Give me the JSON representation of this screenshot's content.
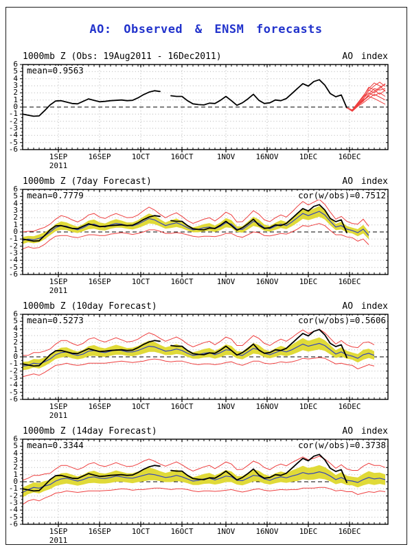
{
  "page": {
    "title": "AO: Observed & ENSM forecasts"
  },
  "colors": {
    "title_blue": "#2233cc",
    "observed_black": "#000000",
    "ensemble_red": "#ee3e3e",
    "mean_blue": "#3344bb",
    "spread_yellow": "#e0da38",
    "grid_gray": "#b2b2b2"
  },
  "panels": [
    {
      "header_left": "1000mb Z (Obs: 19Aug2011 - 16Dec2011)",
      "header_right": "AO index",
      "mean_label": "mean=0.9563"
    },
    {
      "header_left": "1000mb Z (7day Forecast)",
      "header_right": "AO index",
      "mean_label": "mean=0.7779",
      "cor_label": "cor(w/obs)=0.7512"
    },
    {
      "header_left": "1000mb Z (10day Forecast)",
      "header_right": "AO index",
      "mean_label": "mean=0.5273",
      "cor_label": "cor(w/obs)=0.5606"
    },
    {
      "header_left": "1000mb Z (14day Forecast)",
      "header_right": "AO index",
      "mean_label": "mean=0.3344",
      "cor_label": "cor(w/obs)=0.3738"
    }
  ],
  "chart_data": {
    "type": "line",
    "ylim": [
      -6,
      6
    ],
    "x_max": 133,
    "x_axis_note": "x in days since 19Aug2011; axis ends ~30Dec2011",
    "y_ticks": [
      6,
      5,
      4,
      3,
      2,
      1,
      0,
      -1,
      -2,
      -3,
      -4,
      -5,
      -6
    ],
    "x_ticks": [
      {
        "label": "1SEP",
        "sub": "2011",
        "t": 13
      },
      {
        "label": "16SEP",
        "t": 28
      },
      {
        "label": "1OCT",
        "t": 43
      },
      {
        "label": "16OCT",
        "t": 58
      },
      {
        "label": "1NOV",
        "t": 74
      },
      {
        "label": "16NOV",
        "t": 89
      },
      {
        "label": "1DEC",
        "t": 104
      },
      {
        "label": "16DEC",
        "t": 119
      }
    ],
    "observed": {
      "name": "AO index observed (1000mb Z)",
      "mean": 0.9563,
      "t0": 0,
      "dt": 2,
      "y": [
        -1.0,
        -1.15,
        -1.3,
        -1.25,
        -0.5,
        0.3,
        0.85,
        0.9,
        0.7,
        0.5,
        0.45,
        0.8,
        1.15,
        0.95,
        0.75,
        0.8,
        0.9,
        0.95,
        1.0,
        0.9,
        0.95,
        1.3,
        1.75,
        2.1,
        2.3,
        2.2,
        null,
        1.6,
        1.5,
        1.5,
        0.9,
        0.45,
        0.35,
        0.3,
        0.55,
        0.5,
        0.95,
        1.5,
        0.9,
        0.25,
        0.6,
        1.15,
        1.8,
        0.95,
        0.5,
        0.6,
        1.0,
        0.9,
        1.2,
        1.9,
        2.6,
        3.3,
        2.95,
        3.6,
        3.85,
        3.1,
        1.9,
        1.45,
        1.7,
        -0.1
      ]
    },
    "ensemble_members": {
      "name": "ENSM member forecasts beyond 16Dec",
      "t0": 118,
      "dt": 2,
      "members": [
        [
          -0.1,
          -0.5,
          0.3,
          1.0,
          1.6,
          2.2,
          2.8,
          3.2
        ],
        [
          -0.1,
          -0.45,
          0.5,
          1.4,
          2.3,
          3.0,
          3.5,
          2.9
        ],
        [
          -0.1,
          -0.55,
          0.2,
          0.8,
          1.8,
          2.6,
          2.4,
          2.6
        ],
        [
          -0.1,
          -0.4,
          0.6,
          1.6,
          2.6,
          3.4,
          3.0,
          2.2
        ],
        [
          -0.1,
          -0.5,
          0.4,
          1.2,
          2.0,
          1.6,
          2.0,
          1.5
        ],
        [
          -0.1,
          -0.6,
          0.1,
          0.6,
          1.2,
          1.8,
          1.4,
          1.0
        ],
        [
          -0.1,
          -0.5,
          0.3,
          1.1,
          2.4,
          2.0,
          2.6,
          3.3
        ],
        [
          -0.1,
          -0.45,
          0.2,
          0.9,
          1.5,
          1.2,
          0.8,
          0.4
        ],
        [
          -0.1,
          -0.55,
          0.5,
          1.5,
          2.8,
          2.4,
          1.8,
          2.4
        ]
      ]
    },
    "forecast_panels": [
      {
        "name": "7day Forecast",
        "mean_stat": 0.7779,
        "cor_w_obs": 0.7512,
        "t0": 0,
        "dt": 2,
        "mean": [
          -1.2,
          -1.0,
          -1.1,
          -0.9,
          -0.55,
          0.0,
          0.6,
          0.9,
          0.8,
          0.5,
          0.3,
          0.6,
          1.0,
          1.1,
          0.8,
          0.7,
          1.0,
          1.2,
          1.1,
          0.9,
          0.85,
          1.1,
          1.5,
          1.9,
          1.7,
          1.3,
          0.9,
          1.1,
          1.3,
          1.0,
          0.6,
          0.3,
          0.4,
          0.6,
          0.7,
          0.45,
          0.8,
          1.3,
          1.1,
          0.4,
          0.35,
          0.9,
          1.5,
          1.2,
          0.6,
          0.45,
          0.8,
          1.1,
          0.9,
          1.4,
          2.0,
          2.6,
          2.3,
          2.6,
          2.9,
          2.4,
          1.5,
          0.7,
          0.9,
          0.4,
          0.2,
          -0.1,
          0.4,
          -0.5
        ],
        "inner": [
          0.5,
          0.45,
          0.5,
          0.55,
          0.5,
          0.45,
          0.5,
          0.6,
          0.55,
          0.5,
          0.45,
          0.5,
          0.6,
          0.65,
          0.55,
          0.5,
          0.55,
          0.6,
          0.5,
          0.45,
          0.5,
          0.55,
          0.65,
          0.7,
          0.6,
          0.5,
          0.45,
          0.55,
          0.6,
          0.5,
          0.4,
          0.35,
          0.45,
          0.5,
          0.55,
          0.45,
          0.55,
          0.65,
          0.55,
          0.4,
          0.45,
          0.55,
          0.65,
          0.55,
          0.45,
          0.4,
          0.5,
          0.55,
          0.5,
          0.6,
          0.7,
          0.75,
          0.65,
          0.7,
          0.75,
          0.65,
          0.55,
          0.45,
          0.55,
          0.45,
          0.4,
          0.5,
          0.6,
          0.55
        ],
        "outer": [
          1.2,
          1.1,
          1.2,
          1.3,
          1.2,
          1.1,
          1.2,
          1.4,
          1.3,
          1.2,
          1.1,
          1.2,
          1.4,
          1.5,
          1.3,
          1.2,
          1.3,
          1.4,
          1.2,
          1.1,
          1.2,
          1.3,
          1.5,
          1.6,
          1.4,
          1.2,
          1.1,
          1.3,
          1.4,
          1.2,
          1.0,
          0.9,
          1.1,
          1.2,
          1.3,
          1.1,
          1.3,
          1.5,
          1.3,
          1.0,
          1.1,
          1.3,
          1.5,
          1.3,
          1.1,
          1.0,
          1.2,
          1.3,
          1.2,
          1.4,
          1.6,
          1.7,
          1.5,
          1.6,
          1.7,
          1.5,
          1.3,
          1.1,
          1.3,
          1.1,
          1.0,
          1.2,
          1.4,
          1.3
        ]
      },
      {
        "name": "10day Forecast",
        "mean_stat": 0.5273,
        "cor_w_obs": 0.5606,
        "t0": 0,
        "dt": 2,
        "mean": [
          -1.3,
          -1.2,
          -0.9,
          -1.0,
          -0.7,
          -0.3,
          0.3,
          0.6,
          0.7,
          0.4,
          0.2,
          0.4,
          0.8,
          0.9,
          0.7,
          0.6,
          0.8,
          1.0,
          0.9,
          0.7,
          0.7,
          0.9,
          1.2,
          1.5,
          1.4,
          1.1,
          0.8,
          0.9,
          1.1,
          0.9,
          0.5,
          0.2,
          0.3,
          0.5,
          0.6,
          0.3,
          0.6,
          1.0,
          0.9,
          0.3,
          0.2,
          0.7,
          1.2,
          1.0,
          0.5,
          0.3,
          0.6,
          0.9,
          0.7,
          1.0,
          1.4,
          1.8,
          1.5,
          1.7,
          1.9,
          1.6,
          1.0,
          0.4,
          0.7,
          0.3,
          0.1,
          -0.2,
          0.3,
          0.5,
          0.2
        ],
        "inner": [
          0.6,
          0.55,
          0.6,
          0.65,
          0.6,
          0.55,
          0.6,
          0.7,
          0.65,
          0.6,
          0.55,
          0.6,
          0.7,
          0.75,
          0.65,
          0.6,
          0.65,
          0.7,
          0.6,
          0.55,
          0.6,
          0.65,
          0.75,
          0.8,
          0.7,
          0.6,
          0.55,
          0.65,
          0.7,
          0.6,
          0.5,
          0.45,
          0.55,
          0.6,
          0.65,
          0.55,
          0.65,
          0.75,
          0.65,
          0.5,
          0.55,
          0.65,
          0.75,
          0.65,
          0.55,
          0.5,
          0.6,
          0.65,
          0.6,
          0.7,
          0.8,
          0.85,
          0.75,
          0.8,
          0.85,
          0.75,
          0.65,
          0.55,
          0.65,
          0.55,
          0.5,
          0.6,
          0.7,
          0.65,
          0.6
        ],
        "outer": [
          1.5,
          1.4,
          1.5,
          1.6,
          1.5,
          1.4,
          1.5,
          1.7,
          1.6,
          1.5,
          1.4,
          1.5,
          1.7,
          1.8,
          1.6,
          1.5,
          1.6,
          1.7,
          1.5,
          1.4,
          1.5,
          1.6,
          1.8,
          1.9,
          1.7,
          1.5,
          1.4,
          1.6,
          1.7,
          1.5,
          1.3,
          1.2,
          1.4,
          1.5,
          1.6,
          1.4,
          1.6,
          1.8,
          1.6,
          1.3,
          1.4,
          1.6,
          1.8,
          1.6,
          1.4,
          1.3,
          1.5,
          1.6,
          1.5,
          1.7,
          1.9,
          2.0,
          1.8,
          1.9,
          2.0,
          1.8,
          1.6,
          1.4,
          1.6,
          1.4,
          1.3,
          1.5,
          1.7,
          1.6,
          1.5
        ]
      },
      {
        "name": "14day Forecast",
        "mean_stat": 0.3344,
        "cor_w_obs": 0.3738,
        "t0": 0,
        "dt": 2,
        "mean": [
          -1.5,
          -1.1,
          -0.8,
          -0.9,
          -0.6,
          -0.4,
          0.1,
          0.4,
          0.5,
          0.3,
          0.1,
          0.3,
          0.6,
          0.7,
          0.5,
          0.45,
          0.6,
          0.8,
          0.7,
          0.55,
          0.5,
          0.7,
          0.9,
          1.1,
          1.0,
          0.8,
          0.6,
          0.7,
          0.9,
          0.7,
          0.4,
          0.1,
          0.2,
          0.4,
          0.5,
          0.25,
          0.5,
          0.8,
          0.7,
          0.2,
          0.15,
          0.5,
          0.9,
          0.8,
          0.4,
          0.2,
          0.5,
          0.7,
          0.55,
          0.8,
          1.0,
          1.3,
          1.1,
          1.2,
          1.4,
          1.2,
          0.8,
          0.3,
          0.6,
          0.2,
          0.1,
          -0.1,
          0.3,
          0.6,
          0.4,
          0.5,
          0.3
        ],
        "inner": [
          0.7,
          0.65,
          0.7,
          0.75,
          0.7,
          0.65,
          0.7,
          0.8,
          0.75,
          0.7,
          0.65,
          0.7,
          0.8,
          0.85,
          0.75,
          0.7,
          0.75,
          0.8,
          0.7,
          0.65,
          0.7,
          0.75,
          0.85,
          0.9,
          0.8,
          0.7,
          0.65,
          0.75,
          0.8,
          0.7,
          0.6,
          0.55,
          0.65,
          0.7,
          0.75,
          0.65,
          0.75,
          0.85,
          0.75,
          0.6,
          0.65,
          0.75,
          0.85,
          0.75,
          0.65,
          0.6,
          0.7,
          0.75,
          0.7,
          0.8,
          0.9,
          0.95,
          0.85,
          0.9,
          0.95,
          0.85,
          0.75,
          0.65,
          0.75,
          0.65,
          0.6,
          0.7,
          0.8,
          0.9,
          0.85,
          0.8,
          0.75
        ],
        "outer": [
          1.7,
          1.6,
          1.7,
          1.8,
          1.7,
          1.6,
          1.7,
          1.9,
          1.8,
          1.7,
          1.6,
          1.7,
          1.9,
          2.0,
          1.8,
          1.7,
          1.8,
          1.9,
          1.7,
          1.6,
          1.7,
          1.8,
          2.0,
          2.1,
          1.9,
          1.7,
          1.6,
          1.8,
          1.9,
          1.7,
          1.5,
          1.4,
          1.6,
          1.7,
          1.8,
          1.6,
          1.8,
          2.0,
          1.8,
          1.5,
          1.6,
          1.8,
          2.0,
          1.8,
          1.6,
          1.5,
          1.7,
          1.8,
          1.7,
          1.9,
          2.1,
          2.2,
          2.0,
          2.1,
          2.2,
          2.0,
          1.8,
          1.6,
          1.8,
          1.6,
          1.5,
          1.7,
          1.9,
          2.0,
          1.9,
          1.8,
          1.7
        ]
      }
    ]
  }
}
